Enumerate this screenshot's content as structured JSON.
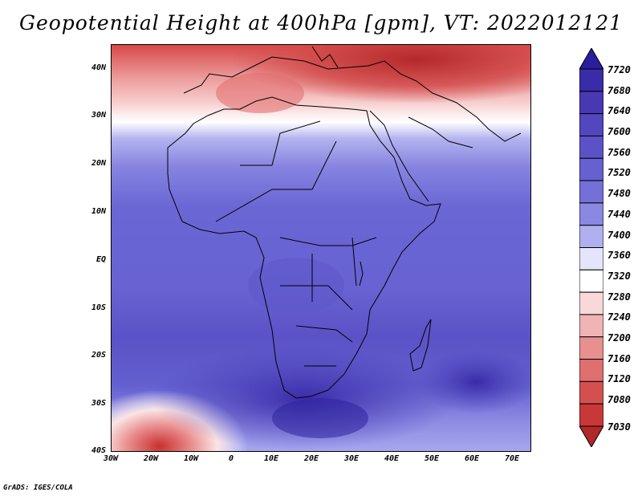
{
  "title": "Geopotential Height at 400hPa [gpm], VT: 2022012121",
  "credit": "GrADS: IGES/COLA",
  "map": {
    "variable": "Geopotential Height",
    "level": "400hPa",
    "units": "gpm",
    "valid_time": "2022012121",
    "lat_labels": [
      "40N",
      "30N",
      "20N",
      "10N",
      "EQ",
      "10S",
      "20S",
      "30S",
      "40S"
    ],
    "lon_labels": [
      "30W",
      "20W",
      "10W",
      "0",
      "10E",
      "20E",
      "30E",
      "40E",
      "50E",
      "60E",
      "70E"
    ]
  },
  "colorbar": {
    "levels": [
      "7720",
      "7680",
      "7640",
      "7600",
      "7560",
      "7520",
      "7480",
      "7440",
      "7400",
      "7360",
      "7320",
      "7280",
      "7240",
      "7200",
      "7160",
      "7120",
      "7080",
      "7030"
    ],
    "colors": [
      "#2a1d9e",
      "#3a2ca8",
      "#4838b4",
      "#5446be",
      "#5c52c8",
      "#6660d0",
      "#7470d8",
      "#8a88e2",
      "#b0b0f0",
      "#e4e4fa",
      "#ffffff",
      "#f8d8d8",
      "#f0b4b4",
      "#e89090",
      "#e07070",
      "#d45050",
      "#c83838",
      "#b02828"
    ]
  }
}
